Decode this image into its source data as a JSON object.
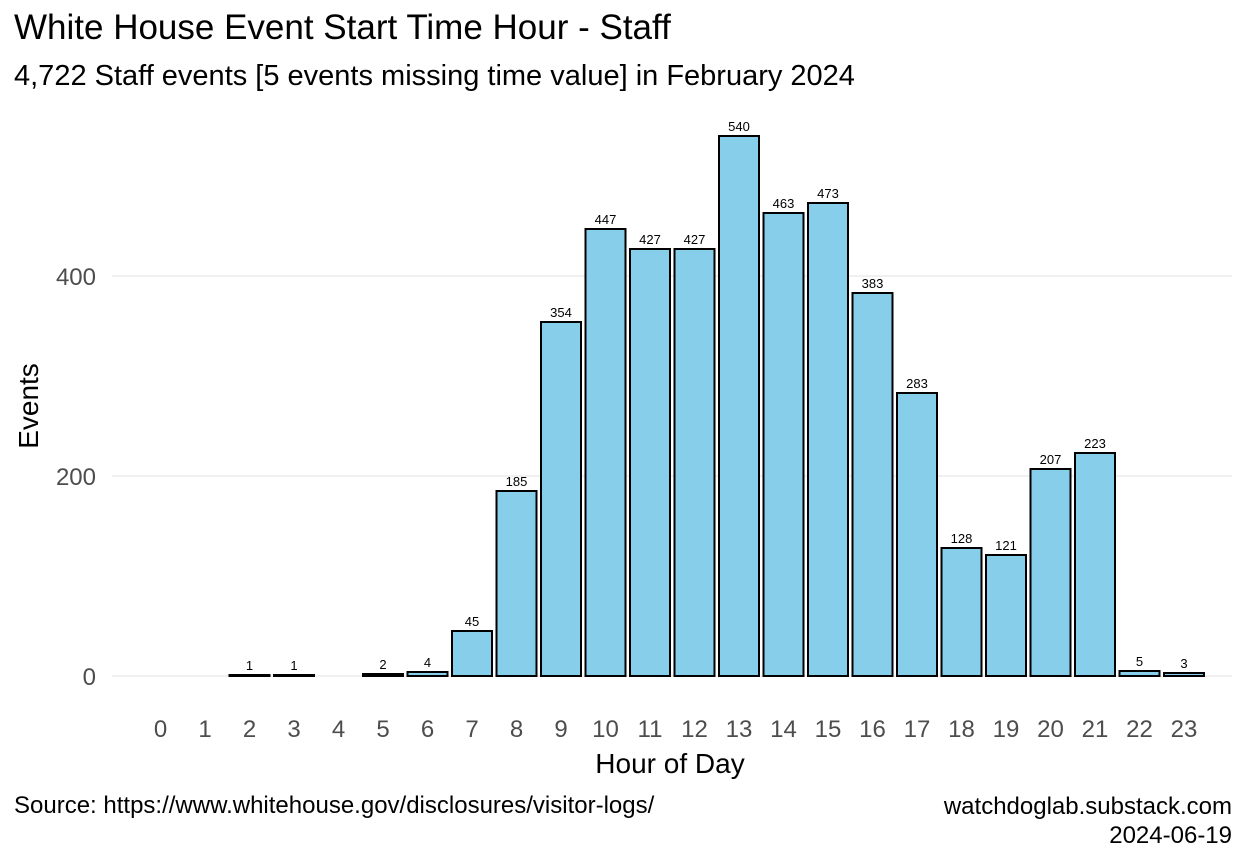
{
  "chart_data": {
    "type": "bar",
    "title": "White House Event Start Time Hour - Staff",
    "subtitle": "4,722 Staff events [5 events missing time value] in February 2024",
    "xlabel": "Hour of Day",
    "ylabel": "Events",
    "categories": [
      "0",
      "1",
      "2",
      "3",
      "4",
      "5",
      "6",
      "7",
      "8",
      "9",
      "10",
      "11",
      "12",
      "13",
      "14",
      "15",
      "16",
      "17",
      "18",
      "19",
      "20",
      "21",
      "22",
      "23"
    ],
    "values": [
      null,
      null,
      1,
      1,
      null,
      2,
      4,
      45,
      185,
      354,
      447,
      427,
      427,
      540,
      463,
      473,
      383,
      283,
      128,
      121,
      207,
      223,
      5,
      3
    ],
    "data_labels": [
      "",
      "",
      "1",
      "1",
      "",
      "2",
      "4",
      "45",
      "185",
      "354",
      "447",
      "427",
      "427",
      "540",
      "463",
      "473",
      "383",
      "283",
      "128",
      "121",
      "207",
      "223",
      "5",
      "3"
    ],
    "yticks": [
      0,
      200,
      400
    ],
    "ylim": [
      0,
      560
    ],
    "grid": true,
    "legend": false,
    "bar_fill": "#87CEEB",
    "bar_outline": "#000000",
    "grid_color": "#ebebeb"
  },
  "caption": {
    "source": "Source: https://www.whitehouse.gov/disclosures/visitor-logs/",
    "site": "watchdoglab.substack.com",
    "date": "2024-06-19"
  }
}
